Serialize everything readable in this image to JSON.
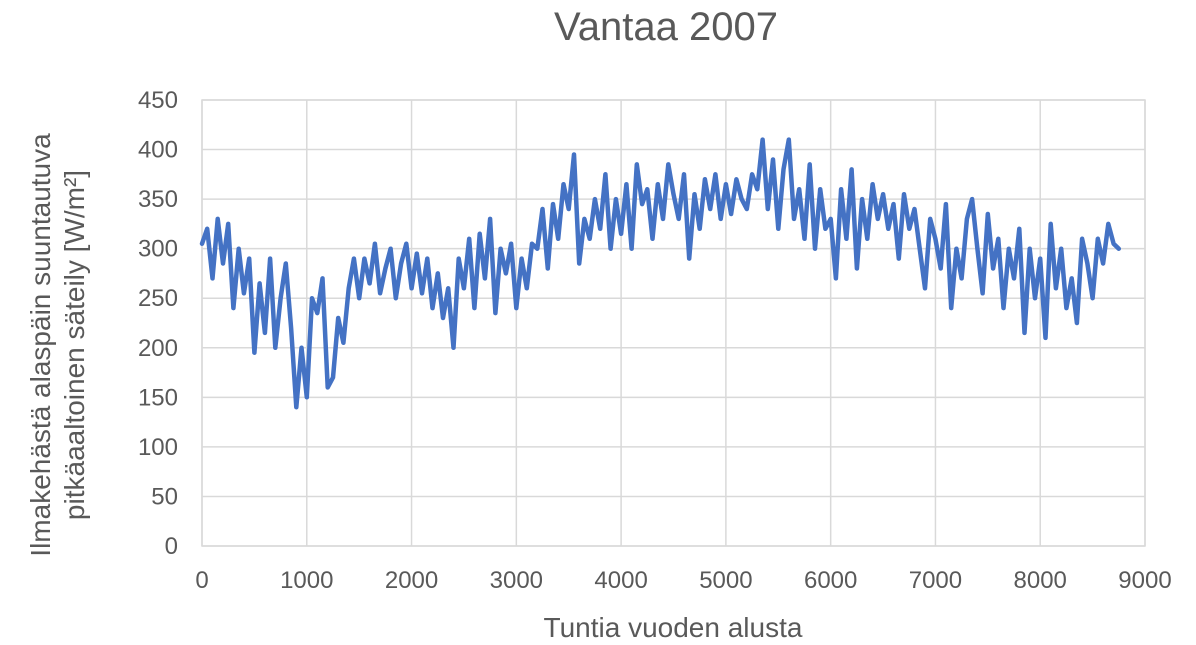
{
  "chart_data": {
    "type": "line",
    "title": "Vantaa 2007",
    "xlabel": "Tuntia vuoden alusta",
    "ylabel_line1": "Ilmakehästä alaspäin suuntautuva",
    "ylabel_line2": "pitkäaaltoinen säteily [W/m²]",
    "xlim": [
      0,
      9000
    ],
    "ylim": [
      0,
      450
    ],
    "x_ticks": [
      0,
      1000,
      2000,
      3000,
      4000,
      5000,
      6000,
      7000,
      8000,
      9000
    ],
    "y_ticks": [
      0,
      50,
      100,
      150,
      200,
      250,
      300,
      350,
      400,
      450
    ],
    "grid": true,
    "legend": "none",
    "series_color": "#4472c4",
    "series": [
      {
        "x": [
          0,
          50,
          100,
          150,
          200,
          250,
          300,
          350,
          400,
          450,
          500,
          550,
          600,
          650,
          700,
          750,
          800,
          850,
          900,
          950,
          1000,
          1050,
          1100,
          1150,
          1200,
          1250,
          1300,
          1350,
          1400,
          1450,
          1500,
          1550,
          1600,
          1650,
          1700,
          1750,
          1800,
          1850,
          1900,
          1950,
          2000,
          2050,
          2100,
          2150,
          2200,
          2250,
          2300,
          2350,
          2400,
          2450,
          2500,
          2550,
          2600,
          2650,
          2700,
          2750,
          2800,
          2850,
          2900,
          2950,
          3000,
          3050,
          3100,
          3150,
          3200,
          3250,
          3300,
          3350,
          3400,
          3450,
          3500,
          3550,
          3600,
          3650,
          3700,
          3750,
          3800,
          3850,
          3900,
          3950,
          4000,
          4050,
          4100,
          4150,
          4200,
          4250,
          4300,
          4350,
          4400,
          4450,
          4500,
          4550,
          4600,
          4650,
          4700,
          4750,
          4800,
          4850,
          4900,
          4950,
          5000,
          5050,
          5100,
          5150,
          5200,
          5250,
          5300,
          5350,
          5400,
          5450,
          5500,
          5550,
          5600,
          5650,
          5700,
          5750,
          5800,
          5850,
          5900,
          5950,
          6000,
          6050,
          6100,
          6150,
          6200,
          6250,
          6300,
          6350,
          6400,
          6450,
          6500,
          6550,
          6600,
          6650,
          6700,
          6750,
          6800,
          6850,
          6900,
          6950,
          7000,
          7050,
          7100,
          7150,
          7200,
          7250,
          7300,
          7350,
          7400,
          7450,
          7500,
          7550,
          7600,
          7650,
          7700,
          7750,
          7800,
          7850,
          7900,
          7950,
          8000,
          8050,
          8100,
          8150,
          8200,
          8250,
          8300,
          8350,
          8400,
          8450,
          8500,
          8550,
          8600,
          8650,
          8700,
          8750
        ],
        "y": [
          305,
          320,
          270,
          330,
          285,
          325,
          240,
          300,
          255,
          290,
          195,
          265,
          215,
          290,
          200,
          250,
          285,
          220,
          140,
          200,
          150,
          250,
          235,
          270,
          160,
          170,
          230,
          205,
          260,
          290,
          250,
          290,
          265,
          305,
          255,
          280,
          300,
          250,
          285,
          305,
          260,
          295,
          255,
          290,
          240,
          275,
          230,
          260,
          200,
          290,
          260,
          310,
          240,
          315,
          270,
          330,
          235,
          300,
          275,
          305,
          240,
          290,
          260,
          305,
          300,
          340,
          280,
          345,
          310,
          365,
          340,
          395,
          285,
          330,
          310,
          350,
          320,
          375,
          300,
          350,
          315,
          365,
          300,
          385,
          345,
          360,
          310,
          365,
          330,
          385,
          355,
          330,
          375,
          290,
          355,
          320,
          370,
          340,
          375,
          330,
          365,
          335,
          370,
          350,
          340,
          375,
          360,
          410,
          340,
          390,
          320,
          380,
          410,
          330,
          360,
          310,
          385,
          300,
          360,
          320,
          330,
          270,
          360,
          310,
          380,
          280,
          350,
          310,
          365,
          330,
          355,
          320,
          345,
          290,
          355,
          320,
          340,
          300,
          260,
          330,
          310,
          280,
          345,
          240,
          300,
          270,
          330,
          350,
          300,
          255,
          335,
          280,
          310,
          240,
          300,
          270,
          320,
          215,
          300,
          250,
          290,
          210,
          325,
          260,
          300,
          240,
          270,
          225,
          310,
          285,
          250,
          310,
          285,
          325,
          305,
          300
        ]
      }
    ]
  }
}
